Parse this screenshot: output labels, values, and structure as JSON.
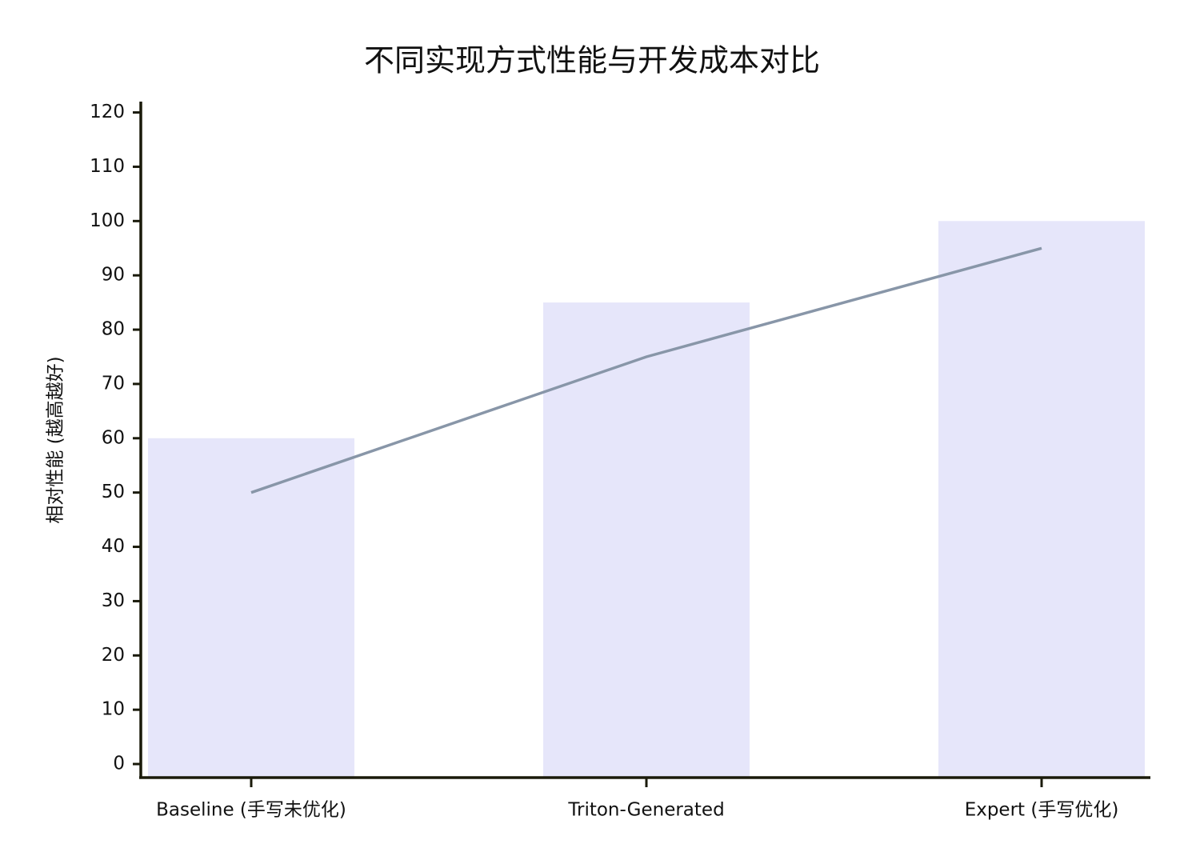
{
  "chart_data": {
    "type": "bar",
    "title": "不同实现方式性能与开发成本对比",
    "y_label": "相对性能 (越高越好)",
    "categories": [
      "Baseline (手写未优化)",
      "Triton-Generated",
      "Expert (手写优化)"
    ],
    "series": [
      {
        "type": "bar",
        "color": "#e6e6fa",
        "values": [
          60,
          85,
          100
        ]
      },
      {
        "type": "line",
        "color": "#8896a8",
        "values": [
          50,
          75,
          95
        ]
      }
    ],
    "ylim": [
      -2.5,
      122
    ],
    "yticks": [
      0,
      10,
      20,
      30,
      40,
      50,
      60,
      70,
      80,
      90,
      100,
      110,
      120
    ],
    "grid": false
  }
}
